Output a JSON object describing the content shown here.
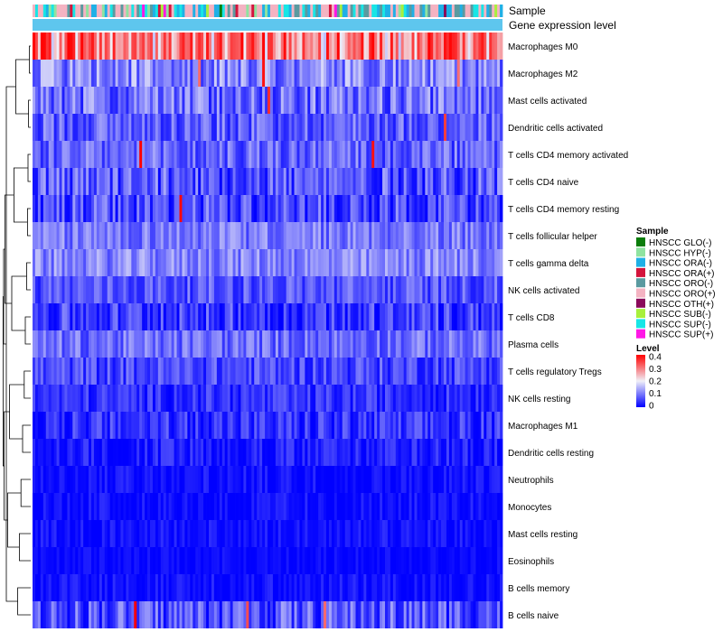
{
  "chart_data": {
    "type": "heatmap",
    "annotation_labels": [
      "Sample",
      "Gene expression level"
    ],
    "rows": [
      {
        "name": "Macrophages M0",
        "mean": 0.28,
        "spread": 0.12,
        "hot_rate": 0.18
      },
      {
        "name": "Macrophages M2",
        "mean": 0.11,
        "spread": 0.07,
        "hot_rate": 0.02
      },
      {
        "name": "Mast cells activated",
        "mean": 0.09,
        "spread": 0.07,
        "hot_rate": 0.01
      },
      {
        "name": "Dendritic cells activated",
        "mean": 0.08,
        "spread": 0.06,
        "hot_rate": 0.01
      },
      {
        "name": "T cells CD4 memory activated",
        "mean": 0.08,
        "spread": 0.06,
        "hot_rate": 0.01
      },
      {
        "name": "T cells CD4 naive",
        "mean": 0.07,
        "spread": 0.07,
        "hot_rate": 0.005
      },
      {
        "name": "T cells CD4 memory resting",
        "mean": 0.06,
        "spread": 0.07,
        "hot_rate": 0.01
      },
      {
        "name": "T cells follicular helper",
        "mean": 0.1,
        "spread": 0.05,
        "hot_rate": 0.0
      },
      {
        "name": "T cells gamma delta",
        "mean": 0.11,
        "spread": 0.05,
        "hot_rate": 0.0
      },
      {
        "name": "NK cells activated",
        "mean": 0.07,
        "spread": 0.05,
        "hot_rate": 0.0
      },
      {
        "name": "T cells CD8",
        "mean": 0.05,
        "spread": 0.06,
        "hot_rate": 0.0
      },
      {
        "name": "Plasma cells",
        "mean": 0.09,
        "spread": 0.05,
        "hot_rate": 0.0
      },
      {
        "name": "T cells regulatory  Tregs",
        "mean": 0.06,
        "spread": 0.05,
        "hot_rate": 0.0
      },
      {
        "name": "NK cells resting",
        "mean": 0.04,
        "spread": 0.04,
        "hot_rate": 0.0
      },
      {
        "name": "Macrophages M1",
        "mean": 0.04,
        "spread": 0.05,
        "hot_rate": 0.0
      },
      {
        "name": "Dendritic cells resting",
        "mean": 0.02,
        "spread": 0.04,
        "hot_rate": 0.0
      },
      {
        "name": "Neutrophils",
        "mean": 0.01,
        "spread": 0.03,
        "hot_rate": 0.0
      },
      {
        "name": "Monocytes",
        "mean": 0.01,
        "spread": 0.03,
        "hot_rate": 0.0
      },
      {
        "name": "Mast cells resting",
        "mean": 0.01,
        "spread": 0.03,
        "hot_rate": 0.0
      },
      {
        "name": "Eosinophils",
        "mean": 0.005,
        "spread": 0.02,
        "hot_rate": 0.0
      },
      {
        "name": "B cells memory",
        "mean": 0.01,
        "spread": 0.03,
        "hot_rate": 0.0
      },
      {
        "name": "B cells naive",
        "mean": 0.07,
        "spread": 0.07,
        "hot_rate": 0.01
      }
    ],
    "n_samples": 176,
    "sample_groups": [
      {
        "name": "HNSCC GLO(-)",
        "color": "#0a7d0a"
      },
      {
        "name": "HNSCC HYP(-)",
        "color": "#8fe3a0"
      },
      {
        "name": "HNSCC ORA(-)",
        "color": "#1fb0e6"
      },
      {
        "name": "HNSCC ORA(+)",
        "color": "#d4143c"
      },
      {
        "name": "HNSCC ORO(-)",
        "color": "#5a9aa0"
      },
      {
        "name": "HNSCC ORO(+)",
        "color": "#f4b3c2"
      },
      {
        "name": "HNSCC OTH(+)",
        "color": "#8a0a5a"
      },
      {
        "name": "HNSCC SUB(-)",
        "color": "#a8f03c"
      },
      {
        "name": "HNSCC SUP(-)",
        "color": "#17e6e6"
      },
      {
        "name": "HNSCC SUP(+)",
        "color": "#ff17e6"
      }
    ],
    "sample_weights": [
      0.01,
      0.04,
      0.2,
      0.02,
      0.18,
      0.38,
      0.01,
      0.04,
      0.13,
      0.01
    ],
    "gene_expression_color": "#5ec6ee",
    "legend": {
      "sample_title": "Sample",
      "level_title": "Level",
      "level_ticks": [
        "0.4",
        "0.3",
        "0.2",
        "0.1",
        "0"
      ],
      "level_values": [
        0.4,
        0.3,
        0.2,
        0.1,
        0
      ],
      "placement": "right"
    },
    "color_scale": {
      "min": 0,
      "max": 0.4,
      "low": "#0000ff",
      "mid": "#f0f0f8",
      "high": "#ff0000",
      "mid_value": 0.2
    },
    "dendrogram_merges": [
      [
        0,
        1,
        0.05
      ],
      [
        2,
        3,
        0.08
      ],
      [
        4,
        5,
        0.1
      ],
      [
        6,
        7,
        0.12
      ],
      [
        8,
        9,
        0.15
      ],
      [
        10,
        11,
        0.2
      ],
      [
        12,
        13,
        0.24
      ],
      [
        14,
        15,
        0.3
      ],
      [
        16,
        17,
        0.36
      ],
      [
        18,
        19,
        0.42
      ],
      [
        20,
        21,
        0.48
      ],
      [
        22,
        23,
        0.55
      ],
      [
        24,
        25,
        0.62
      ],
      [
        26,
        27,
        0.7
      ],
      [
        28,
        29,
        0.78
      ],
      [
        30,
        31,
        0.85
      ],
      [
        32,
        33,
        0.9
      ],
      [
        34,
        35,
        0.95
      ],
      [
        36,
        37,
        0.98
      ],
      [
        38,
        39,
        1.0
      ],
      [
        40,
        41,
        1.02
      ]
    ]
  }
}
